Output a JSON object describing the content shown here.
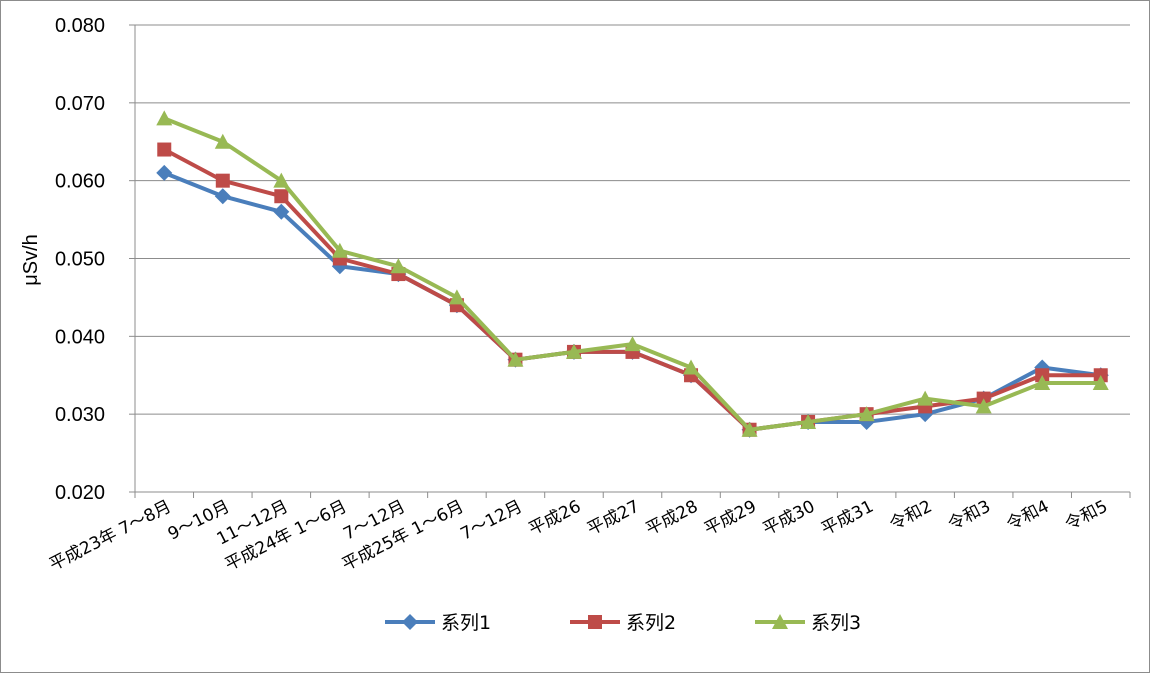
{
  "chart_data": {
    "type": "line",
    "title": "",
    "xlabel": "",
    "ylabel": "μSv/h",
    "ylim": [
      0.02,
      0.08
    ],
    "yticks": [
      "0.020",
      "0.030",
      "0.040",
      "0.050",
      "0.060",
      "0.070",
      "0.080"
    ],
    "ytick_values": [
      0.02,
      0.03,
      0.04,
      0.05,
      0.06,
      0.07,
      0.08
    ],
    "grid": true,
    "legend_position": "bottom",
    "categories": [
      "平成23年 7～8月",
      "9～10月",
      "11～12月",
      "平成24年 1～6月",
      "7～12月",
      "平成25年 1～6月",
      "7～12月",
      "平成26",
      "平成27",
      "平成28",
      "平成29",
      "平成30",
      "平成31",
      "令和2",
      "令和3",
      "令和4",
      "令和5"
    ],
    "series": [
      {
        "name": "系列1",
        "color": "#4a7ebb",
        "marker": "diamond",
        "values": [
          0.061,
          0.058,
          0.056,
          0.049,
          0.048,
          0.044,
          0.037,
          0.038,
          0.038,
          0.035,
          0.028,
          0.029,
          0.029,
          0.03,
          0.032,
          0.036,
          0.035
        ]
      },
      {
        "name": "系列2",
        "color": "#be4b48",
        "marker": "square",
        "values": [
          0.064,
          0.06,
          0.058,
          0.05,
          0.048,
          0.044,
          0.037,
          0.038,
          0.038,
          0.035,
          0.028,
          0.029,
          0.03,
          0.031,
          0.032,
          0.035,
          0.035
        ]
      },
      {
        "name": "系列3",
        "color": "#98b954",
        "marker": "triangle",
        "values": [
          0.068,
          0.065,
          0.06,
          0.051,
          0.049,
          0.045,
          0.037,
          0.038,
          0.039,
          0.036,
          0.028,
          0.029,
          0.03,
          0.032,
          0.031,
          0.034,
          0.034
        ]
      }
    ]
  }
}
